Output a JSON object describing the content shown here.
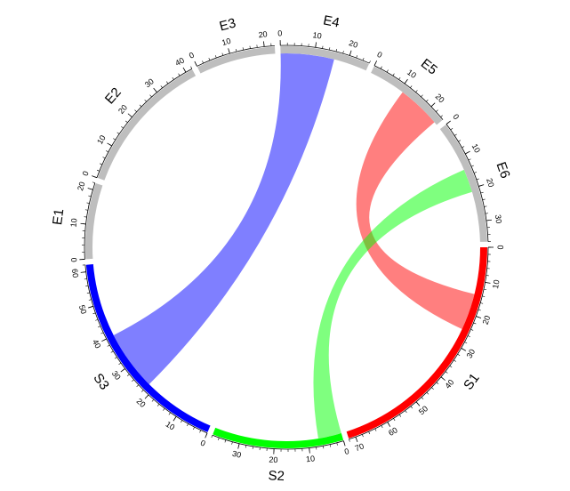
{
  "chart_data": {
    "type": "chord",
    "sectors": [
      {
        "name": "S1",
        "size": 72,
        "color": "#ff0000",
        "ticks": [
          0,
          10,
          20,
          30,
          40,
          50,
          60,
          70
        ]
      },
      {
        "name": "S2",
        "size": 38,
        "color": "#00ff00",
        "ticks": [
          0,
          10,
          20,
          30
        ]
      },
      {
        "name": "S3",
        "size": 62,
        "color": "#0000ff",
        "ticks": [
          0,
          10,
          20,
          30,
          40,
          50,
          60
        ]
      },
      {
        "name": "E1",
        "size": 22,
        "color": "#bebebe",
        "ticks": [
          0,
          10,
          20
        ]
      },
      {
        "name": "E2",
        "size": 42,
        "color": "#bebebe",
        "ticks": [
          0,
          10,
          20,
          30,
          40
        ]
      },
      {
        "name": "E3",
        "size": 23,
        "color": "#bebebe",
        "ticks": [
          0,
          10,
          20
        ]
      },
      {
        "name": "E4",
        "size": 26,
        "color": "#bebebe",
        "ticks": [
          0,
          10,
          20
        ]
      },
      {
        "name": "E5",
        "size": 25,
        "color": "#bebebe",
        "ticks": [
          0,
          10,
          20
        ]
      },
      {
        "name": "E6",
        "size": 36,
        "color": "#bebebe",
        "ticks": [
          0,
          10,
          20,
          30
        ]
      }
    ],
    "minor_tick_step": 2,
    "links": [
      {
        "from": "S3",
        "from_range": [
          22,
          40
        ],
        "to": "E4",
        "to_range": [
          0,
          16
        ],
        "color": "rgba(0,0,255,0.5)"
      },
      {
        "from": "S1",
        "from_range": [
          14,
          25
        ],
        "to": "E5",
        "to_range": [
          11,
          24
        ],
        "color": "rgba(255,0,0,0.5)"
      },
      {
        "from": "S2",
        "from_range": [
          0,
          7
        ],
        "to": "E6",
        "to_range": [
          14,
          21
        ],
        "color": "rgba(0,255,0,0.5)"
      }
    ]
  }
}
